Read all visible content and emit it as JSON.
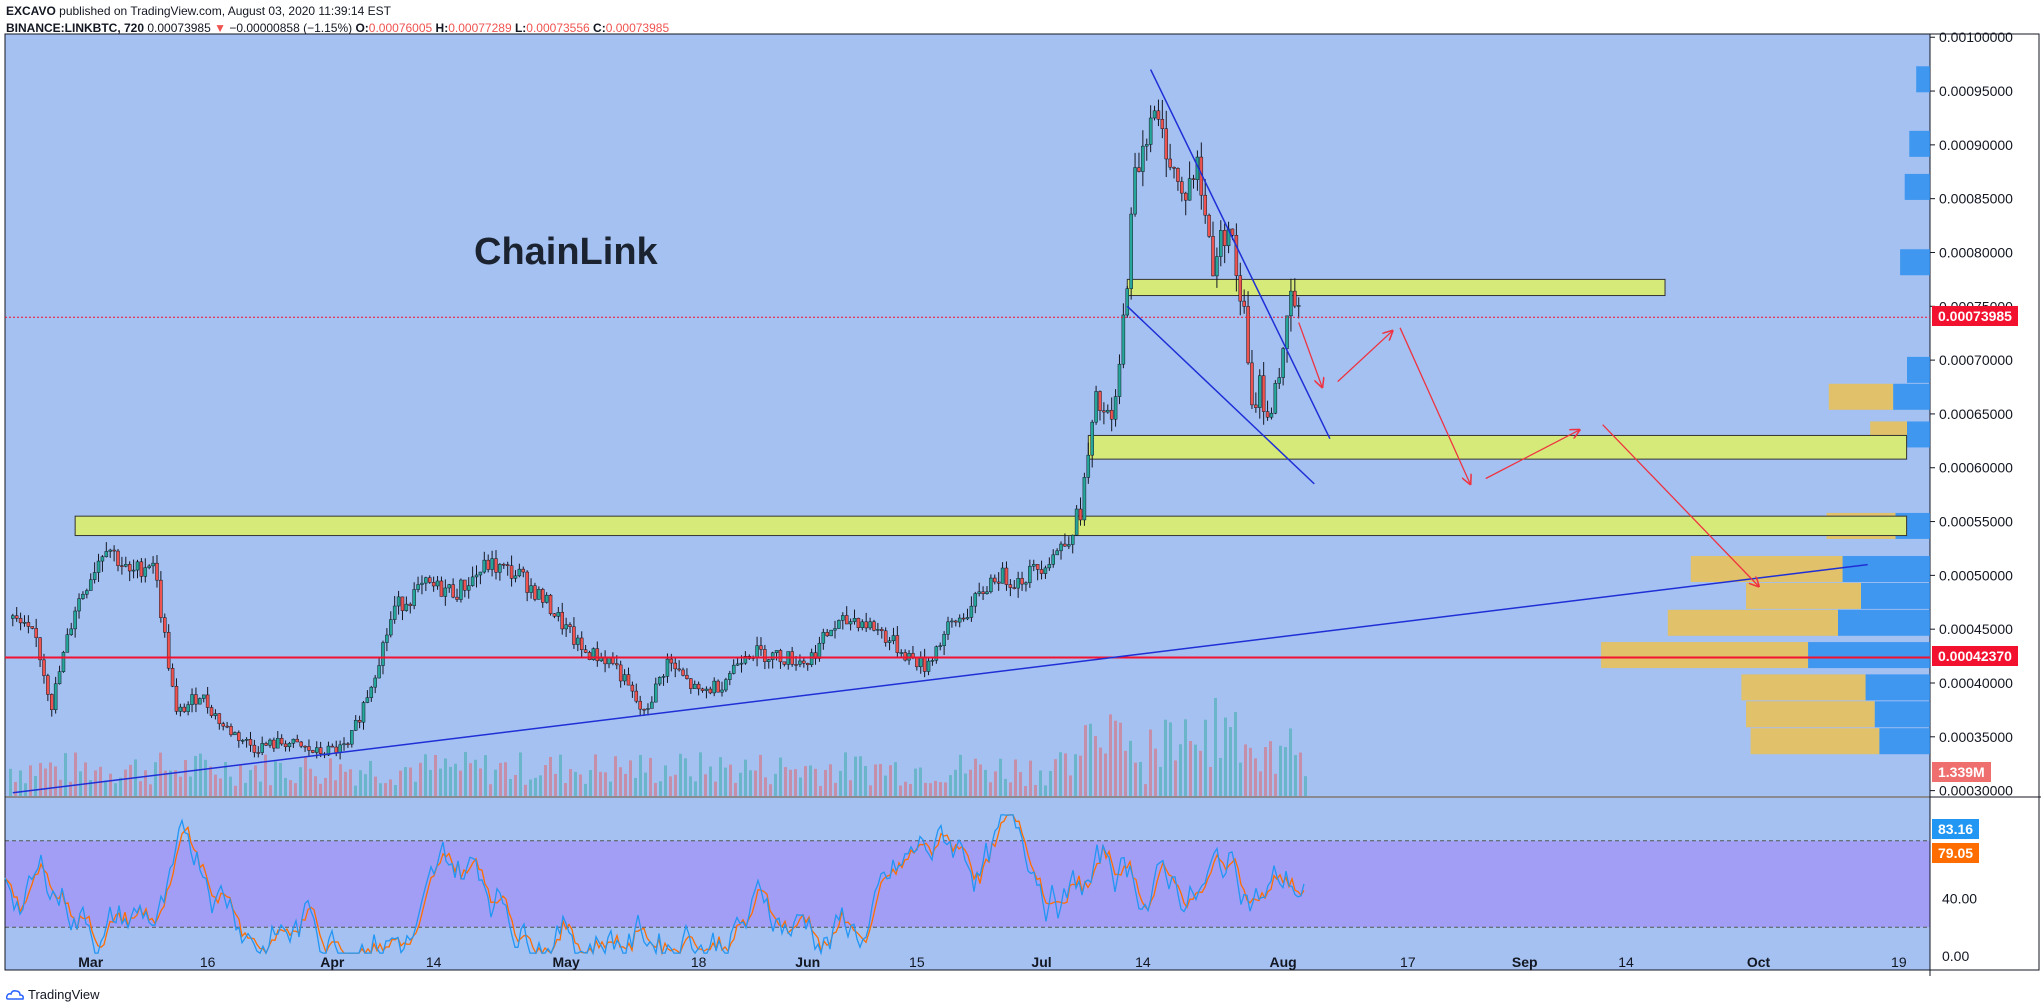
{
  "header": {
    "publisher": "EXCAVO",
    "published_text": "published on TradingView.com, August 03, 2020 11:39:14 EST",
    "symbol": "BINANCE:LINKBTC, 720",
    "last": "0.00073985",
    "change_arrow": "▼",
    "change": "−0.00000858 (−1.15%)",
    "open_label": "O:",
    "open": "0.00076005",
    "high_label": "H:",
    "high": "0.00077289",
    "low_label": "L:",
    "low": "0.00073556",
    "close_label": "C:",
    "close": "0.00073985"
  },
  "annotation_title": "ChainLink",
  "price_tags": {
    "last_price": "0.00073985",
    "support_price": "0.00042370",
    "volume": "1.339M"
  },
  "stoch_tags": {
    "k": "83.16",
    "d": "79.05"
  },
  "footer": {
    "brand": "TradingView"
  },
  "colors": {
    "background": "#a4c1f2",
    "stoch_band": "#a39ef5",
    "up": "#26a69a",
    "down": "#ef5350",
    "zone": "#d6ea7a",
    "trendline": "#1f2fd6",
    "last_price_tag": "#f2112f",
    "k_line": "#2196f3",
    "d_line": "#ff6d00"
  },
  "chart_data": {
    "type": "candlestick",
    "symbol": "BINANCE:LINKBTC",
    "y_axis": {
      "ticks": [
        "0.00100000",
        "0.00095000",
        "0.00090000",
        "0.00085000",
        "0.00080000",
        "0.00075000",
        "0.00070000",
        "0.00065000",
        "0.00060000",
        "0.00055000",
        "0.00050000",
        "0.00045000",
        "0.00040000",
        "0.00035000",
        "0.00030000"
      ],
      "range": [
        0.000295,
        0.001003
      ]
    },
    "x_axis": {
      "ticks": [
        "Mar",
        "16",
        "Apr",
        "14",
        "May",
        "18",
        "Jun",
        "15",
        "Jul",
        "14",
        "Aug",
        "17",
        "Sep",
        "14",
        "Oct",
        "19"
      ]
    },
    "price_path": [
      [
        "2020-02-20",
        0.00046
      ],
      [
        "2020-02-23",
        0.00044
      ],
      [
        "2020-02-25",
        0.00038
      ],
      [
        "2020-02-28",
        0.00047
      ],
      [
        "2020-03-03",
        0.00053
      ],
      [
        "2020-03-06",
        0.0005
      ],
      [
        "2020-03-09",
        0.000515
      ],
      [
        "2020-03-12",
        0.00037
      ],
      [
        "2020-03-15",
        0.00039
      ],
      [
        "2020-03-18",
        0.00036
      ],
      [
        "2020-03-22",
        0.00034
      ],
      [
        "2020-03-26",
        0.000345
      ],
      [
        "2020-03-30",
        0.000335
      ],
      [
        "2020-04-03",
        0.00034
      ],
      [
        "2020-04-06",
        0.0004
      ],
      [
        "2020-04-09",
        0.00047
      ],
      [
        "2020-04-13",
        0.00049
      ],
      [
        "2020-04-17",
        0.000485
      ],
      [
        "2020-04-21",
        0.00051
      ],
      [
        "2020-04-25",
        0.0005
      ],
      [
        "2020-04-29",
        0.00047
      ],
      [
        "2020-05-03",
        0.00043
      ],
      [
        "2020-05-07",
        0.00042
      ],
      [
        "2020-05-11",
        0.00037
      ],
      [
        "2020-05-14",
        0.00042
      ],
      [
        "2020-05-18",
        0.00039
      ],
      [
        "2020-05-21",
        0.0004
      ],
      [
        "2020-05-24",
        0.00043
      ],
      [
        "2020-05-28",
        0.000425
      ],
      [
        "2020-06-01",
        0.00042
      ],
      [
        "2020-06-04",
        0.00045
      ],
      [
        "2020-06-07",
        0.00046
      ],
      [
        "2020-06-10",
        0.00045
      ],
      [
        "2020-06-13",
        0.00043
      ],
      [
        "2020-06-16",
        0.000415
      ],
      [
        "2020-06-19",
        0.00045
      ],
      [
        "2020-06-22",
        0.00047
      ],
      [
        "2020-06-25",
        0.0005
      ],
      [
        "2020-06-28",
        0.000495
      ],
      [
        "2020-07-01",
        0.00051
      ],
      [
        "2020-07-04",
        0.00053
      ],
      [
        "2020-07-06",
        0.00056
      ],
      [
        "2020-07-08",
        0.00066
      ],
      [
        "2020-07-10",
        0.00064
      ],
      [
        "2020-07-11",
        0.00069
      ],
      [
        "2020-07-12",
        0.00078
      ],
      [
        "2020-07-13",
        0.00087
      ],
      [
        "2020-07-15",
        0.00093
      ],
      [
        "2020-07-17",
        0.0009
      ],
      [
        "2020-07-19",
        0.00085
      ],
      [
        "2020-07-21",
        0.00088
      ],
      [
        "2020-07-23",
        0.00079
      ],
      [
        "2020-07-25",
        0.00083
      ],
      [
        "2020-07-26",
        0.00078
      ],
      [
        "2020-07-27",
        0.00074
      ],
      [
        "2020-07-28",
        0.00065
      ],
      [
        "2020-07-29",
        0.00068
      ],
      [
        "2020-07-30",
        0.00064
      ],
      [
        "2020-07-31",
        0.00068
      ],
      [
        "2020-08-01",
        0.0007
      ],
      [
        "2020-08-02",
        0.00076
      ],
      [
        "2020-08-03",
        0.00074
      ]
    ],
    "horizontal_lines": [
      {
        "price": 0.0004237,
        "style": "solid",
        "color": "#f2112f"
      },
      {
        "price": 0.00073985,
        "style": "dotted",
        "color": "#f2112f"
      }
    ],
    "zones": [
      {
        "from": "2020-07-12",
        "to": "2020-09-19",
        "low": 0.00076,
        "high": 0.000775
      },
      {
        "from": "2020-07-07",
        "to": "2020-10-20",
        "low": 0.000608,
        "high": 0.00063
      },
      {
        "from": "2020-02-28",
        "to": "2020-10-20",
        "low": 0.000537,
        "high": 0.000555
      }
    ],
    "trendlines": [
      {
        "from": [
          "2020-02-20",
          0.000298
        ],
        "to": [
          "2020-10-15",
          0.00051
        ]
      },
      {
        "from": [
          "2020-07-15",
          0.00097
        ],
        "to": [
          "2020-08-07",
          0.000627
        ]
      },
      {
        "from": [
          "2020-07-12",
          0.00075
        ],
        "to": [
          "2020-08-05",
          0.000585
        ]
      }
    ],
    "projection_arrows": [
      [
        [
          "2020-08-03",
          0.000735
        ],
        [
          "2020-08-06",
          0.000675
        ]
      ],
      [
        [
          "2020-08-08",
          0.00068
        ],
        [
          "2020-08-15",
          0.000727
        ]
      ],
      [
        [
          "2020-08-16",
          0.00073
        ],
        [
          "2020-08-25",
          0.000585
        ]
      ],
      [
        [
          "2020-08-27",
          0.00059
        ],
        [
          "2020-09-08",
          0.000635
        ]
      ],
      [
        [
          "2020-09-11",
          0.00064
        ],
        [
          "2020-10-01",
          0.00049
        ]
      ]
    ],
    "volume_profile_rows": [
      {
        "price": 0.00096,
        "buy": 0.6,
        "sell": 0.0
      },
      {
        "price": 0.0009,
        "buy": 0.9,
        "sell": 0.0
      },
      {
        "price": 0.00086,
        "buy": 1.1,
        "sell": 0.0
      },
      {
        "price": 0.00079,
        "buy": 1.3,
        "sell": 0.0
      },
      {
        "price": 0.00069,
        "buy": 1.0,
        "sell": 0.0
      },
      {
        "price": 0.000665,
        "buy": 1.6,
        "sell": 1.4
      },
      {
        "price": 0.00063,
        "buy": 1.0,
        "sell": 0.8
      },
      {
        "price": 0.000545,
        "buy": 1.5,
        "sell": 1.5
      },
      {
        "price": 0.000505,
        "buy": 3.8,
        "sell": 3.3
      },
      {
        "price": 0.00048,
        "buy": 3.0,
        "sell": 2.5
      },
      {
        "price": 0.000455,
        "buy": 4.0,
        "sell": 3.7
      },
      {
        "price": 0.000425,
        "buy": 5.3,
        "sell": 4.5
      },
      {
        "price": 0.000395,
        "buy": 2.8,
        "sell": 2.7
      },
      {
        "price": 0.00037,
        "buy": 2.4,
        "sell": 2.8
      },
      {
        "price": 0.000345,
        "buy": 2.2,
        "sell": 2.8
      }
    ],
    "stochastic": {
      "y_ticks": [
        "40.00",
        "0.00"
      ],
      "upper_band": 80,
      "lower_band": 20,
      "k": 83.16,
      "d": 79.05
    }
  }
}
